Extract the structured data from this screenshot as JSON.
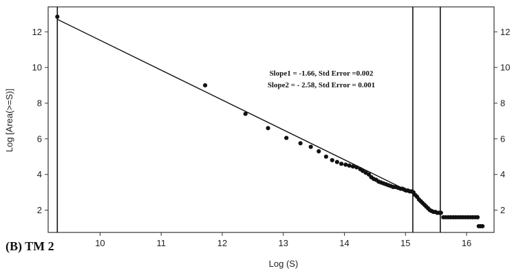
{
  "chart_data": {
    "type": "scatter",
    "panel_label": "(B) TM 2",
    "xlabel": "Log (S)",
    "ylabel": "Log [Area(>=S)]",
    "xlim": [
      9.15,
      16.45
    ],
    "ylim": [
      0.75,
      13.4
    ],
    "x_ticks": [
      10,
      11,
      12,
      13,
      14,
      15,
      16
    ],
    "y_ticks": [
      2,
      4,
      6,
      8,
      10,
      12
    ],
    "vertical_lines": [
      9.3,
      15.12,
      15.57
    ],
    "fit_line": {
      "x": [
        9.3,
        15.12
      ],
      "y": [
        12.7,
        2.95
      ]
    },
    "annotations": [
      "Slope1 = -1.66, Std Error =0.002",
      "Slope2 = - 2.58, Std Error = 0.001"
    ],
    "series": [
      {
        "x": [
          9.3,
          11.72,
          12.38,
          12.75,
          13.05,
          13.28,
          13.45,
          13.58,
          13.7,
          13.8,
          13.88,
          13.95,
          14.02,
          14.08,
          14.14,
          14.2,
          14.26,
          14.3,
          14.35,
          14.4,
          14.44,
          14.48,
          14.52,
          14.56,
          14.6,
          14.64,
          14.68,
          14.72,
          14.76,
          14.8,
          14.84,
          14.88,
          14.92,
          14.95,
          14.98,
          15.01,
          15.04,
          15.07,
          15.1,
          15.13,
          15.16,
          15.19,
          15.22,
          15.25,
          15.28,
          15.31,
          15.34,
          15.37,
          15.4,
          15.43,
          15.46,
          15.49,
          15.52,
          15.55,
          15.58,
          15.62,
          15.66,
          15.7,
          15.74,
          15.78,
          15.82,
          15.86,
          15.9,
          15.94,
          15.98,
          16.02,
          16.06,
          16.1,
          16.14,
          16.18,
          16.2,
          16.23,
          16.26
        ],
        "y": [
          12.85,
          9.0,
          7.4,
          6.6,
          6.05,
          5.75,
          5.55,
          5.3,
          5.0,
          4.8,
          4.7,
          4.6,
          4.55,
          4.5,
          4.45,
          4.4,
          4.3,
          4.2,
          4.1,
          4.0,
          3.85,
          3.75,
          3.7,
          3.6,
          3.55,
          3.5,
          3.45,
          3.4,
          3.35,
          3.3,
          3.3,
          3.25,
          3.2,
          3.2,
          3.15,
          3.1,
          3.1,
          3.05,
          3.05,
          3.0,
          2.85,
          2.75,
          2.6,
          2.5,
          2.4,
          2.3,
          2.2,
          2.1,
          2.0,
          1.95,
          1.9,
          1.9,
          1.85,
          1.85,
          1.85,
          1.6,
          1.6,
          1.6,
          1.6,
          1.6,
          1.6,
          1.6,
          1.6,
          1.6,
          1.6,
          1.6,
          1.6,
          1.6,
          1.6,
          1.6,
          1.1,
          1.1,
          1.1
        ]
      }
    ]
  }
}
